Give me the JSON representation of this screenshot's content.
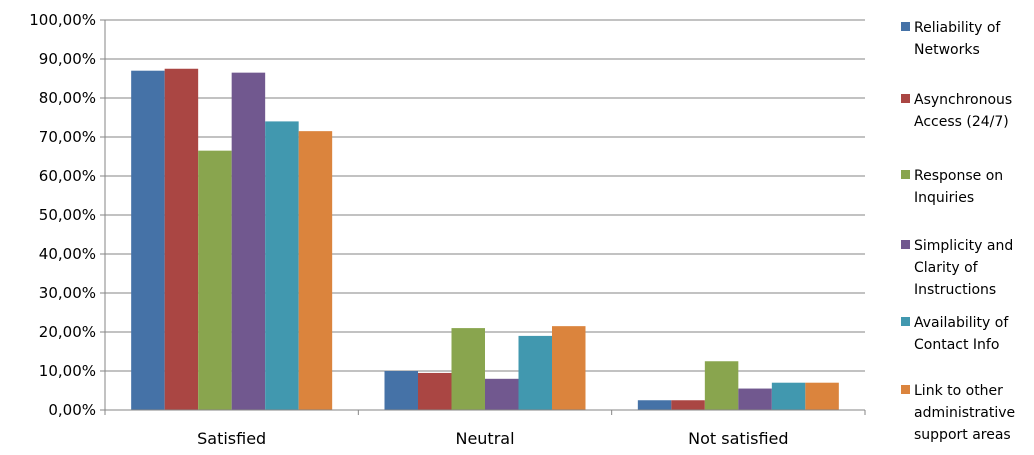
{
  "chart_data": {
    "type": "bar",
    "title": "",
    "xlabel": "",
    "ylabel": "",
    "categories": [
      "Satisfied",
      "Neutral",
      "Not satisfied"
    ],
    "ylim": [
      0,
      100
    ],
    "y_ticks": [
      "0,00%",
      "10,00%",
      "20,00%",
      "30,00%",
      "40,00%",
      "50,00%",
      "60,00%",
      "70,00%",
      "80,00%",
      "90,00%",
      "100,00%"
    ],
    "grid": true,
    "legend_position": "right",
    "series": [
      {
        "name": "Reliability of Networks",
        "legend_lines": [
          "Reliability of",
          "Networks"
        ],
        "color": "#4572A7",
        "values": [
          87.0,
          10.0,
          2.5
        ]
      },
      {
        "name": "Asynchronous Access (24/7)",
        "legend_lines": [
          "Asynchronous",
          "Access (24/7)"
        ],
        "color": "#AA4643",
        "values": [
          87.5,
          9.5,
          2.5
        ]
      },
      {
        "name": "Response on Inquiries",
        "legend_lines": [
          "Response on",
          "Inquiries"
        ],
        "color": "#89A54E",
        "values": [
          66.5,
          21.0,
          12.5
        ]
      },
      {
        "name": "Simplicity and Clarity of Instructions",
        "legend_lines": [
          "Simplicity and",
          "Clarity of",
          "Instructions"
        ],
        "color": "#71588F",
        "values": [
          86.5,
          8.0,
          5.5
        ]
      },
      {
        "name": "Availability of Contact Info",
        "legend_lines": [
          "Availability of",
          "Contact Info"
        ],
        "color": "#4198AF",
        "values": [
          74.0,
          19.0,
          7.0
        ]
      },
      {
        "name": "Link to other administrative support areas",
        "legend_lines": [
          "Link to other",
          "administrative",
          "support areas"
        ],
        "color": "#DB843D",
        "values": [
          71.5,
          21.5,
          7.0
        ]
      }
    ]
  }
}
